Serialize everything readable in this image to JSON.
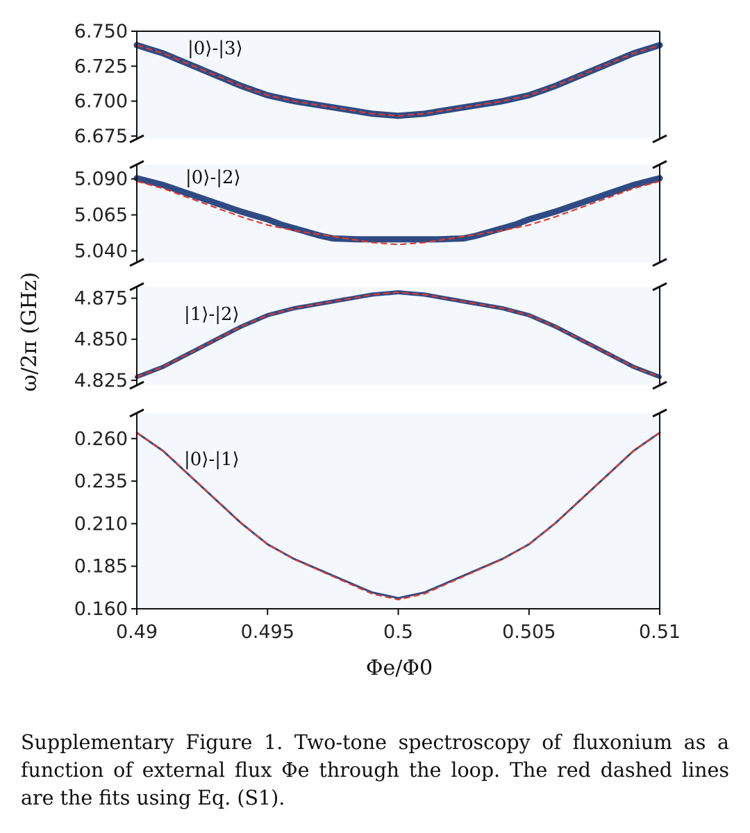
{
  "chart_data": {
    "type": "line",
    "xlabel": "Φe/Φ0",
    "ylabel": "ω/2π (GHz)",
    "xlim": [
      0.49,
      0.51
    ],
    "x_ticks": [
      "0.49",
      "0.495",
      "0.5",
      "0.505",
      "0.51"
    ],
    "x_tick_values": [
      0.49,
      0.495,
      0.5,
      0.505,
      0.51
    ],
    "grid": false,
    "broken_y_axis": true,
    "colors": {
      "data": "#0d2d6e",
      "fit": "#e03a2f",
      "background": "#f4f8fc"
    },
    "panels": [
      {
        "label": "|0⟩-|3⟩",
        "ylim": [
          6.673,
          6.75
        ],
        "y_tick_values": [
          6.675,
          6.7,
          6.725,
          6.75
        ],
        "y_ticks": [
          "6.675",
          "6.700",
          "6.725",
          "6.750"
        ],
        "series": [
          {
            "kind": "fit",
            "style": "dashed",
            "x": [
              0.49,
              0.495,
              0.5,
              0.505,
              0.51
            ],
            "y": [
              6.742,
              6.703,
              6.688,
              6.703,
              6.742
            ]
          },
          {
            "kind": "data",
            "style": "spectroscopy",
            "x": [
              0.49,
              0.495,
              0.5,
              0.505,
              0.51
            ],
            "y": [
              6.742,
              6.703,
              6.688,
              6.703,
              6.742
            ]
          }
        ]
      },
      {
        "label": "|0⟩-|2⟩",
        "ylim": [
          5.032,
          5.1
        ],
        "y_tick_values": [
          5.04,
          5.065,
          5.09
        ],
        "y_ticks": [
          "5.040",
          "5.065",
          "5.090"
        ],
        "series": [
          {
            "kind": "fit",
            "style": "dashed",
            "x": [
              0.49,
              0.495,
              0.5,
              0.505,
              0.51
            ],
            "y": [
              5.09,
              5.057,
              5.043,
              5.057,
              5.09
            ]
          },
          {
            "kind": "data",
            "style": "spectroscopy",
            "x": [
              0.49,
              0.495,
              0.4975,
              0.5025,
              0.505,
              0.51
            ],
            "y": [
              5.092,
              5.061,
              5.048,
              5.048,
              5.061,
              5.092
            ]
          }
        ]
      },
      {
        "label": "|1⟩-|2⟩",
        "ylim": [
          4.822,
          4.882
        ],
        "y_tick_values": [
          4.825,
          4.85,
          4.875
        ],
        "y_ticks": [
          "4.825",
          "4.850",
          "4.875"
        ],
        "series": [
          {
            "kind": "fit",
            "style": "dashed",
            "x": [
              0.49,
              0.495,
              0.5,
              0.505,
              0.51
            ],
            "y": [
              4.825,
              4.866,
              4.88,
              4.866,
              4.825
            ]
          },
          {
            "kind": "data",
            "style": "spectroscopy",
            "x": [
              0.49,
              0.495,
              0.5,
              0.505,
              0.51
            ],
            "y": [
              4.825,
              4.866,
              4.88,
              4.866,
              4.825
            ]
          }
        ]
      },
      {
        "label": "|0⟩-|1⟩",
        "ylim": [
          0.16,
          0.275
        ],
        "y_tick_values": [
          0.16,
          0.185,
          0.21,
          0.235,
          0.26
        ],
        "y_ticks": [
          "0.160",
          "0.185",
          "0.210",
          "0.235",
          "0.260"
        ],
        "series": [
          {
            "kind": "fit",
            "style": "dashed",
            "x": [
              0.49,
              0.495,
              0.5,
              0.505,
              0.51
            ],
            "y": [
              0.267,
              0.196,
              0.162,
              0.196,
              0.267
            ]
          },
          {
            "kind": "data",
            "style": "spectroscopy",
            "x": [
              0.49,
              0.495,
              0.5,
              0.505,
              0.51
            ],
            "y": [
              0.267,
              0.196,
              0.163,
              0.196,
              0.267
            ]
          }
        ]
      }
    ]
  },
  "caption": {
    "label": "Supplementary Figure 1.",
    "text": "Two-tone spectroscopy of fluxonium as a function of external flux Φe through the loop. The red dashed lines are the fits using Eq. (S1)."
  }
}
